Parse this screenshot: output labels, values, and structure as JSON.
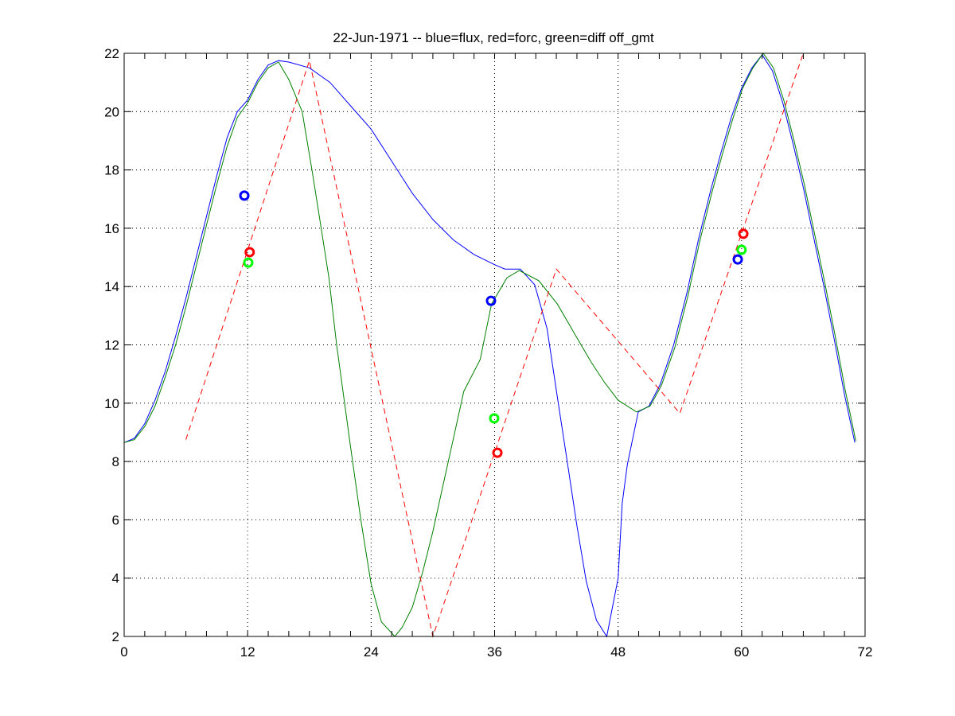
{
  "chart_data": {
    "type": "line",
    "title": "22-Jun-1971 -- blue=flux, red=forc, green=diff off_gmt",
    "xlabel": "",
    "ylabel": "",
    "xlim": [
      0,
      72
    ],
    "ylim": [
      2,
      22
    ],
    "xticks": [
      0,
      12,
      24,
      36,
      48,
      60,
      72
    ],
    "yticks": [
      2,
      4,
      6,
      8,
      10,
      12,
      14,
      16,
      18,
      20,
      22
    ],
    "grid": true,
    "series": [
      {
        "color": "#0000ff",
        "style": "solid",
        "x": [
          0,
          1,
          2,
          3,
          4,
          5,
          6,
          7,
          8,
          9,
          10,
          11,
          12,
          13,
          14,
          15,
          16,
          18,
          20,
          22,
          24,
          26,
          28,
          30,
          32,
          34,
          36,
          37,
          38.5,
          39.9,
          41.1,
          42.1,
          43.1,
          44.0,
          44.9,
          45.9,
          46.9,
          48.0,
          48.4,
          48.9,
          49.96,
          51,
          52.1,
          53.4,
          54.7,
          55.8,
          57,
          58,
          59,
          60,
          61,
          62,
          63,
          64,
          65,
          66,
          67,
          68,
          69,
          70,
          71
        ],
        "y": [
          8.65,
          8.8,
          9.3,
          10.1,
          11.1,
          12.3,
          13.6,
          15.0,
          16.4,
          17.8,
          19.1,
          20.0,
          20.4,
          21.1,
          21.6,
          21.75,
          21.7,
          21.5,
          21.0,
          20.2,
          19.4,
          18.3,
          17.2,
          16.3,
          15.6,
          15.1,
          14.75,
          14.6,
          14.6,
          14.06,
          12.56,
          10.2,
          7.9,
          5.8,
          3.9,
          2.55,
          2.0,
          4.0,
          6.56,
          7.9,
          9.7,
          9.9,
          10.65,
          12.0,
          13.8,
          15.6,
          17.3,
          18.6,
          19.8,
          20.8,
          21.5,
          21.95,
          21.4,
          20.3,
          18.9,
          17.4,
          15.7,
          14.0,
          12.2,
          10.3,
          8.65
        ]
      },
      {
        "color": "#008000",
        "style": "solid",
        "x": [
          0,
          1,
          2,
          3,
          4,
          5,
          6,
          7,
          8,
          9,
          10,
          11,
          12,
          13,
          14,
          15,
          16,
          17.3,
          18.3,
          19.1,
          19.9,
          20.65,
          22,
          23,
          24,
          25,
          26.3,
          27,
          28,
          29,
          30,
          31,
          32,
          33,
          34.6,
          35.7,
          37.2,
          38.4,
          40.3,
          42.1,
          43.9,
          45.4,
          46.7,
          48,
          49.8,
          51.1,
          52.2,
          53.5,
          54.8,
          55.9,
          57.1,
          58.1,
          59.1,
          60.1,
          61.1,
          62.1,
          63.1,
          64.1,
          65.1,
          66.1,
          67.1,
          68.1,
          69.1,
          70.1,
          71.1
        ],
        "y": [
          8.65,
          8.75,
          9.2,
          9.9,
          10.9,
          12.0,
          13.3,
          14.7,
          16.1,
          17.5,
          18.8,
          19.8,
          20.3,
          21.0,
          21.5,
          21.7,
          21.1,
          20.0,
          17.9,
          16.1,
          14.3,
          12.0,
          8.5,
          6.0,
          3.8,
          2.5,
          2.0,
          2.3,
          3.0,
          4.2,
          5.6,
          7.2,
          8.8,
          10.4,
          11.5,
          13.4,
          14.3,
          14.55,
          14.2,
          13.4,
          12.3,
          11.4,
          10.7,
          10.1,
          9.7,
          9.9,
          10.6,
          11.9,
          13.7,
          15.5,
          17.2,
          18.5,
          19.7,
          20.8,
          21.5,
          22.0,
          21.5,
          20.4,
          19.0,
          17.5,
          15.8,
          14.1,
          12.3,
          10.4,
          8.7
        ]
      },
      {
        "color": "#ff0000",
        "style": "dashed",
        "x": [
          6,
          18,
          30,
          42,
          54,
          66
        ],
        "y": [
          8.75,
          21.75,
          2.0,
          14.6,
          9.65,
          22.0
        ]
      }
    ],
    "markers": [
      {
        "color": "#0000ff",
        "x": 11.68,
        "y": 17.12
      },
      {
        "color": "#ff0000",
        "x": 12.2,
        "y": 15.18
      },
      {
        "color": "#00ff00",
        "x": 12.06,
        "y": 14.82
      },
      {
        "color": "#0000ff",
        "x": 35.65,
        "y": 13.51
      },
      {
        "color": "#00ff00",
        "x": 35.96,
        "y": 9.48
      },
      {
        "color": "#ff0000",
        "x": 36.27,
        "y": 8.3
      },
      {
        "color": "#0000ff",
        "x": 59.63,
        "y": 14.93
      },
      {
        "color": "#00ff00",
        "x": 60.0,
        "y": 15.26
      },
      {
        "color": "#ff0000",
        "x": 60.17,
        "y": 15.81
      }
    ]
  }
}
